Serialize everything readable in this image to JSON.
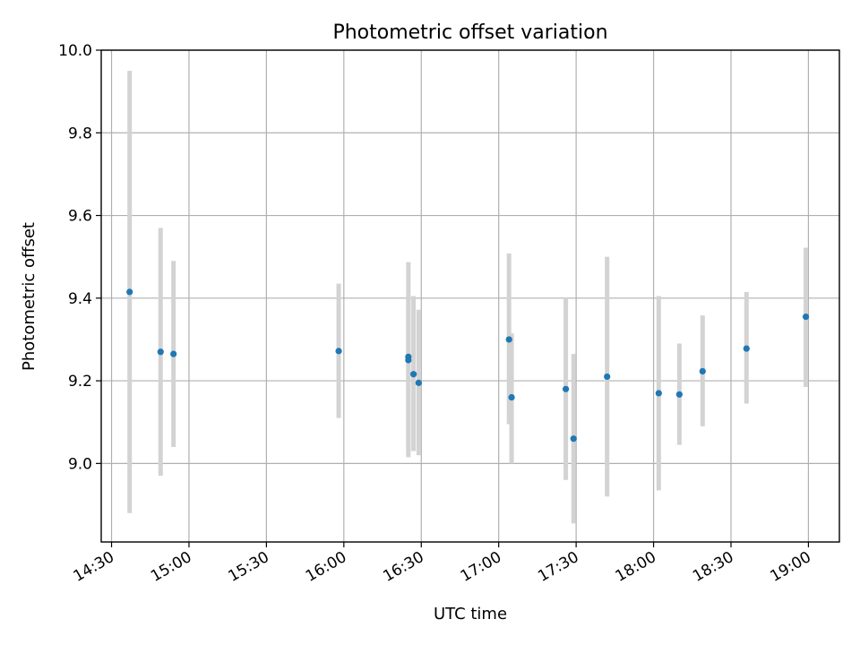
{
  "chart_data": {
    "type": "scatter",
    "title": "Photometric offset variation",
    "xlabel": "UTC time",
    "ylabel": "Photometric offset",
    "x_ticks": [
      "14:30",
      "15:00",
      "15:30",
      "16:00",
      "16:30",
      "17:00",
      "17:30",
      "18:00",
      "18:30",
      "19:00"
    ],
    "y_ticks": [
      "9.0",
      "9.2",
      "9.4",
      "9.6",
      "9.8",
      "10.0"
    ],
    "xlim": [
      "14:26",
      "19:12"
    ],
    "ylim": [
      8.81,
      10.0
    ],
    "grid": true,
    "colors": {
      "point": "#1f77b4",
      "errorbar": "#d3d3d3",
      "grid": "#b0b0b0"
    },
    "points": [
      {
        "x": "14:37",
        "y": 9.415,
        "ylow": 8.88,
        "yhigh": 9.95
      },
      {
        "x": "14:49",
        "y": 9.27,
        "ylow": 8.97,
        "yhigh": 9.57
      },
      {
        "x": "14:54",
        "y": 9.265,
        "ylow": 9.04,
        "yhigh": 9.49
      },
      {
        "x": "15:58",
        "y": 9.272,
        "ylow": 9.11,
        "yhigh": 9.435
      },
      {
        "x": "16:25",
        "y": 9.25,
        "ylow": 9.015,
        "yhigh": 9.487
      },
      {
        "x": "16:25",
        "y": 9.258,
        "ylow": 9.03,
        "yhigh": 9.405
      },
      {
        "x": "16:27",
        "y": 9.216,
        "ylow": 9.03,
        "yhigh": 9.405
      },
      {
        "x": "16:29",
        "y": 9.195,
        "ylow": 9.02,
        "yhigh": 9.372
      },
      {
        "x": "17:04",
        "y": 9.3,
        "ylow": 9.095,
        "yhigh": 9.508
      },
      {
        "x": "17:05",
        "y": 9.16,
        "ylow": 9.0,
        "yhigh": 9.315
      },
      {
        "x": "17:26",
        "y": 9.18,
        "ylow": 8.96,
        "yhigh": 9.4
      },
      {
        "x": "17:29",
        "y": 9.06,
        "ylow": 8.855,
        "yhigh": 9.265
      },
      {
        "x": "17:42",
        "y": 9.21,
        "ylow": 8.92,
        "yhigh": 9.5
      },
      {
        "x": "18:02",
        "y": 9.17,
        "ylow": 8.935,
        "yhigh": 9.405
      },
      {
        "x": "18:10",
        "y": 9.167,
        "ylow": 9.045,
        "yhigh": 9.29
      },
      {
        "x": "18:19",
        "y": 9.223,
        "ylow": 9.09,
        "yhigh": 9.358
      },
      {
        "x": "18:36",
        "y": 9.278,
        "ylow": 9.145,
        "yhigh": 9.415
      },
      {
        "x": "18:59",
        "y": 9.355,
        "ylow": 9.185,
        "yhigh": 9.522
      }
    ]
  }
}
